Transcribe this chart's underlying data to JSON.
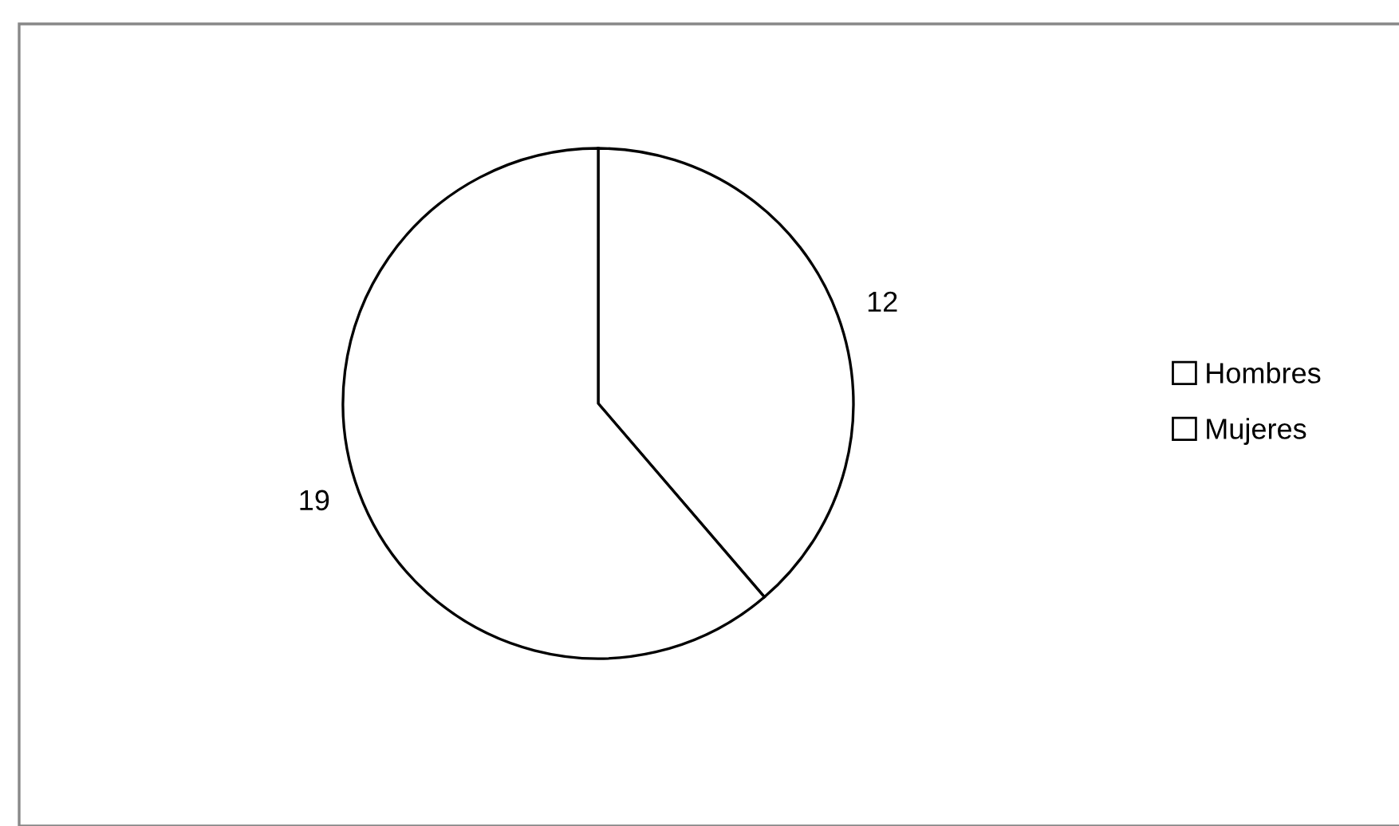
{
  "chart_data": {
    "type": "pie",
    "categories": [
      "Hombres",
      "Mujeres"
    ],
    "values": [
      12,
      19
    ],
    "colors": [
      "#ffffff",
      "#ffffff"
    ],
    "data_labels": true,
    "legend": "right"
  }
}
